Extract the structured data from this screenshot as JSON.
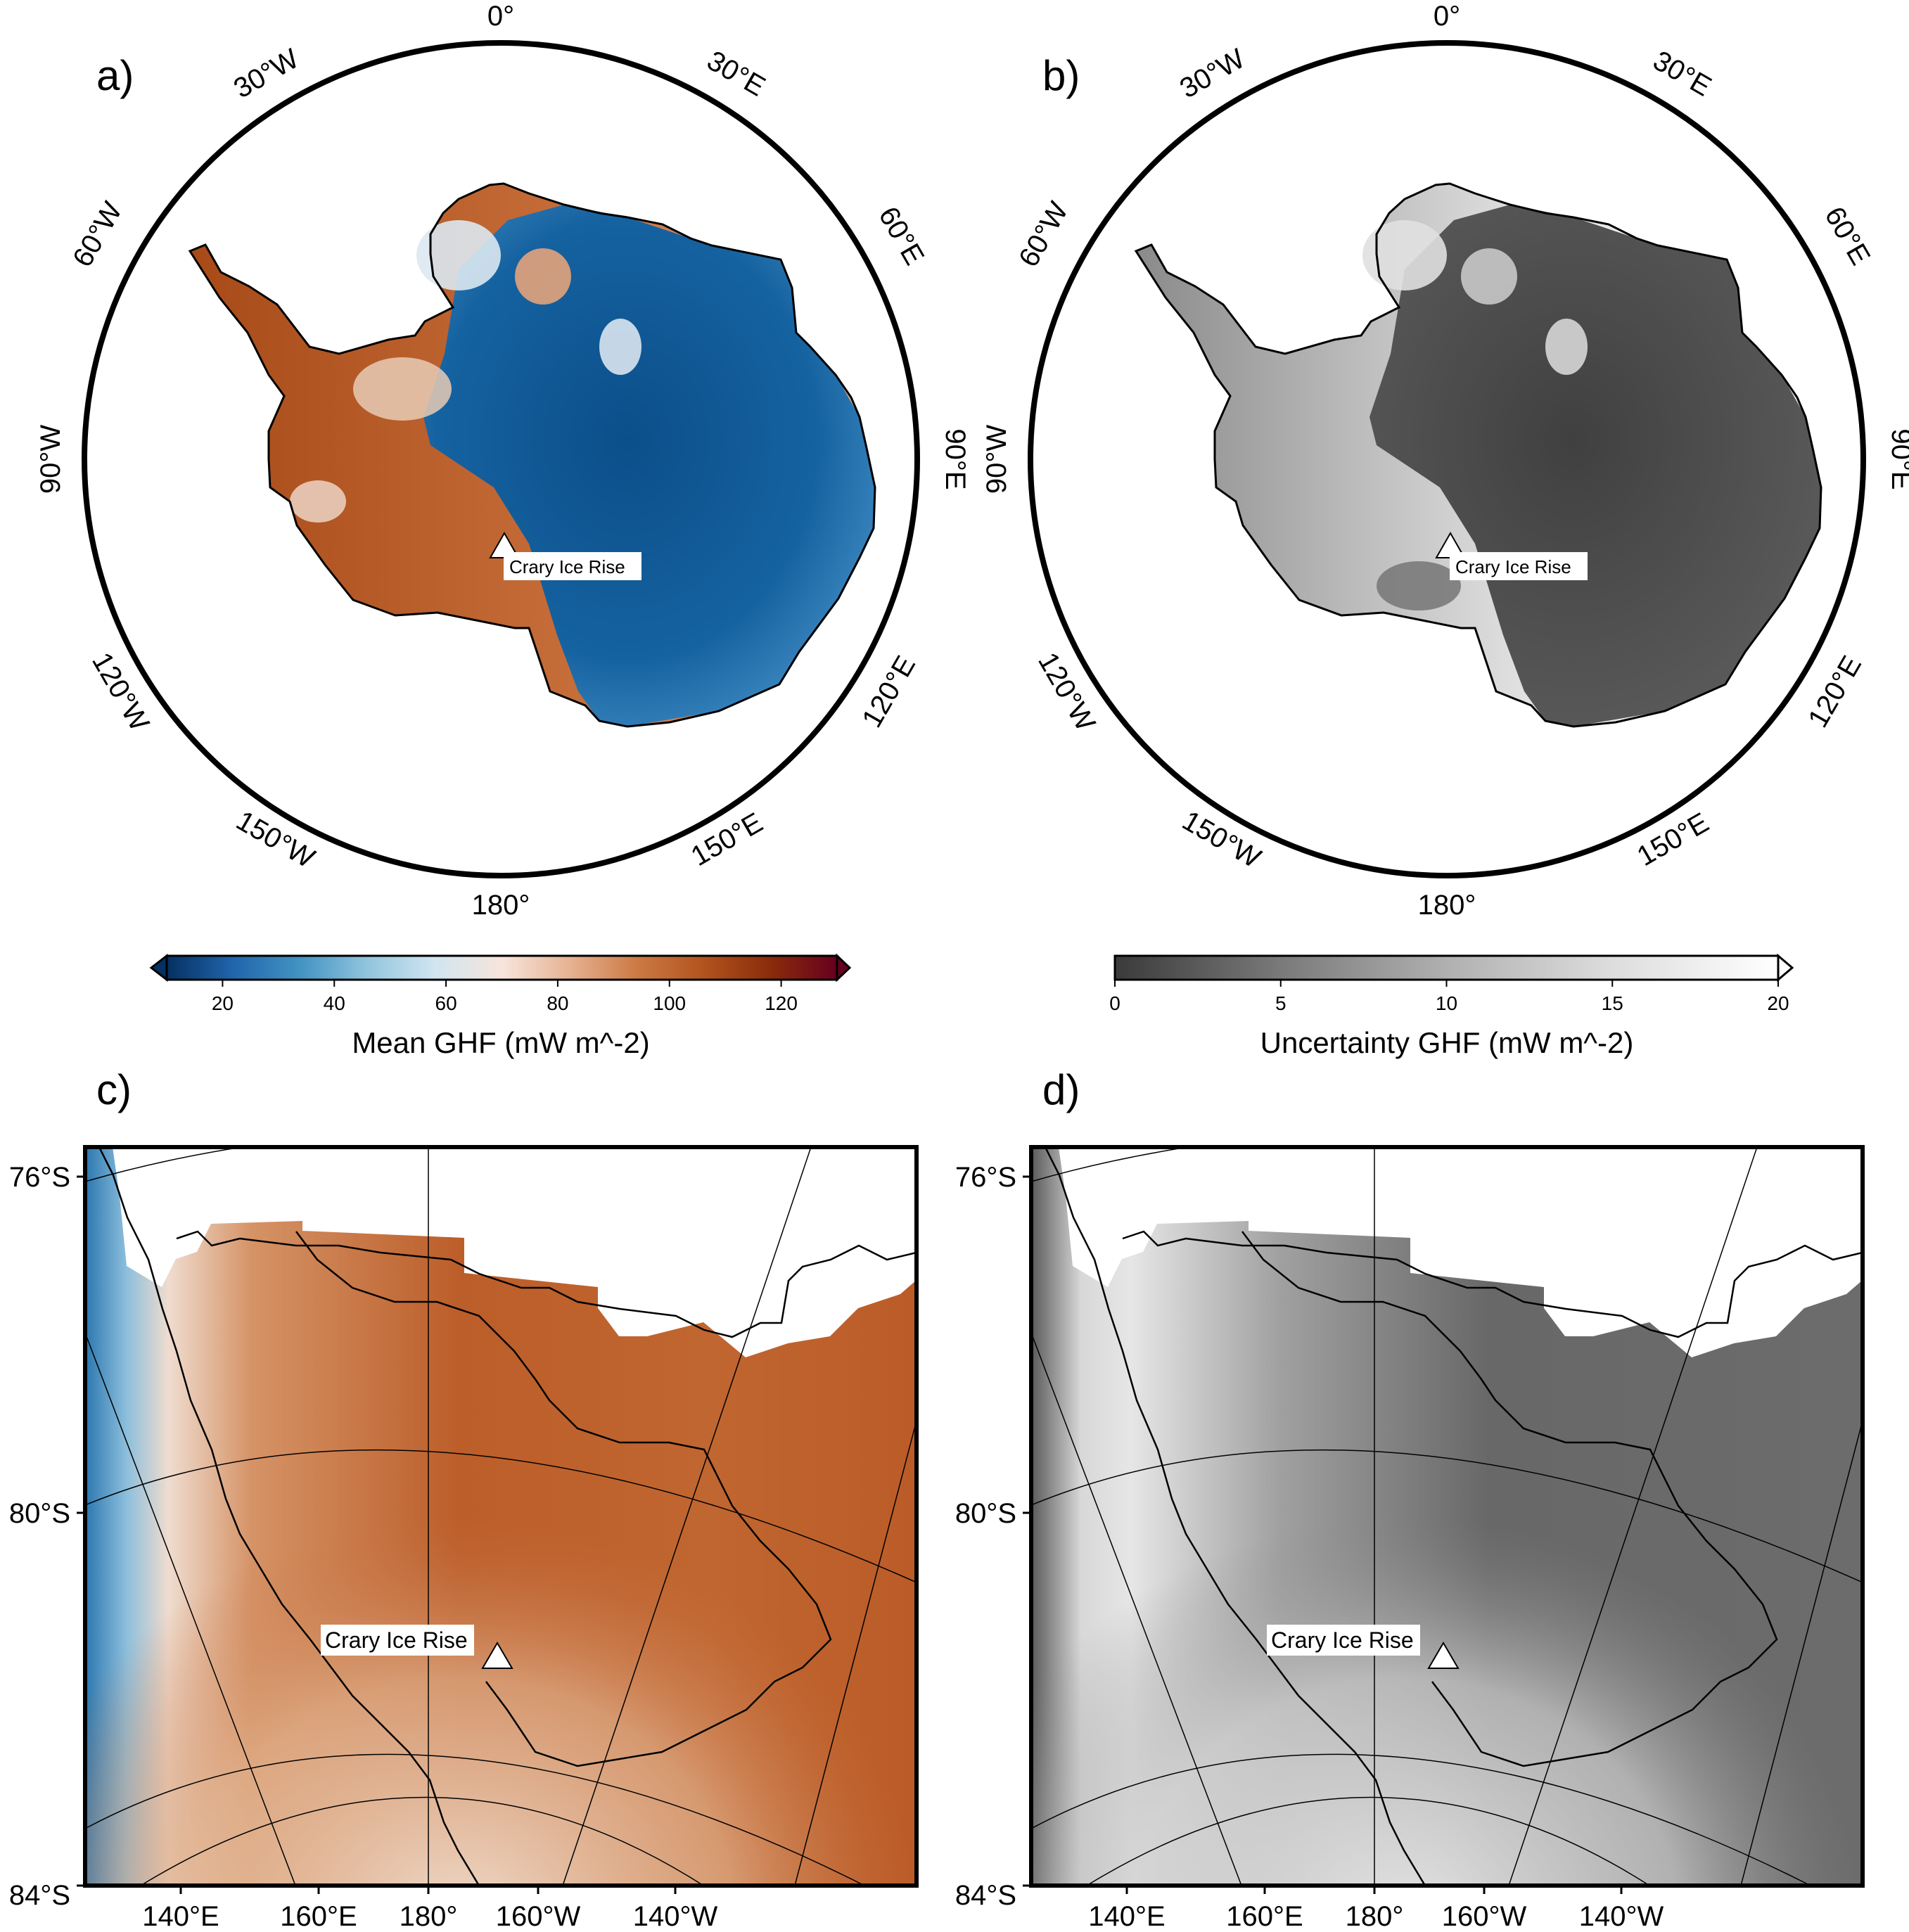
{
  "panels": {
    "a": {
      "letter": "a)",
      "marker_label": "Crary Ice Rise"
    },
    "b": {
      "letter": "b)",
      "marker_label": "Crary Ice Rise"
    },
    "c": {
      "letter": "c)",
      "marker_label": "Crary Ice Rise"
    },
    "d": {
      "letter": "d)",
      "marker_label": "Crary Ice Rise"
    }
  },
  "polar_longitude_labels": [
    "0°",
    "30°E",
    "60°E",
    "90°E",
    "120°E",
    "150°E",
    "180°",
    "150°W",
    "120°W",
    "90°W",
    "60°W",
    "30°W"
  ],
  "regional_latitude_labels": [
    "76°S",
    "80°S",
    "84°S"
  ],
  "regional_longitude_labels": [
    "140°E",
    "160°E",
    "180°",
    "160°W",
    "140°W"
  ],
  "colorbars": {
    "mean": {
      "title": "Mean GHF (mW m^-2)",
      "range": [
        10,
        130
      ],
      "ticks": [
        "20",
        "40",
        "60",
        "80",
        "100",
        "120"
      ],
      "tick_values": [
        20,
        40,
        60,
        80,
        100,
        120
      ],
      "colors": [
        "#053061",
        "#2166ac",
        "#4393c3",
        "#92c5de",
        "#d1e5f0",
        "#f7e5dc",
        "#e6b393",
        "#cd7a45",
        "#b2541e",
        "#8a2c0a",
        "#67001f"
      ]
    },
    "uncertainty": {
      "title": "Uncertainty GHF (mW m^-2)",
      "range": [
        0,
        20
      ],
      "ticks": [
        "0",
        "5",
        "10",
        "15",
        "20"
      ],
      "tick_values": [
        0,
        5,
        10,
        15,
        20
      ],
      "colors": [
        "#3a3a3a",
        "#7a7a7a",
        "#b0b0b0",
        "#dddddd",
        "#ffffff"
      ]
    }
  }
}
